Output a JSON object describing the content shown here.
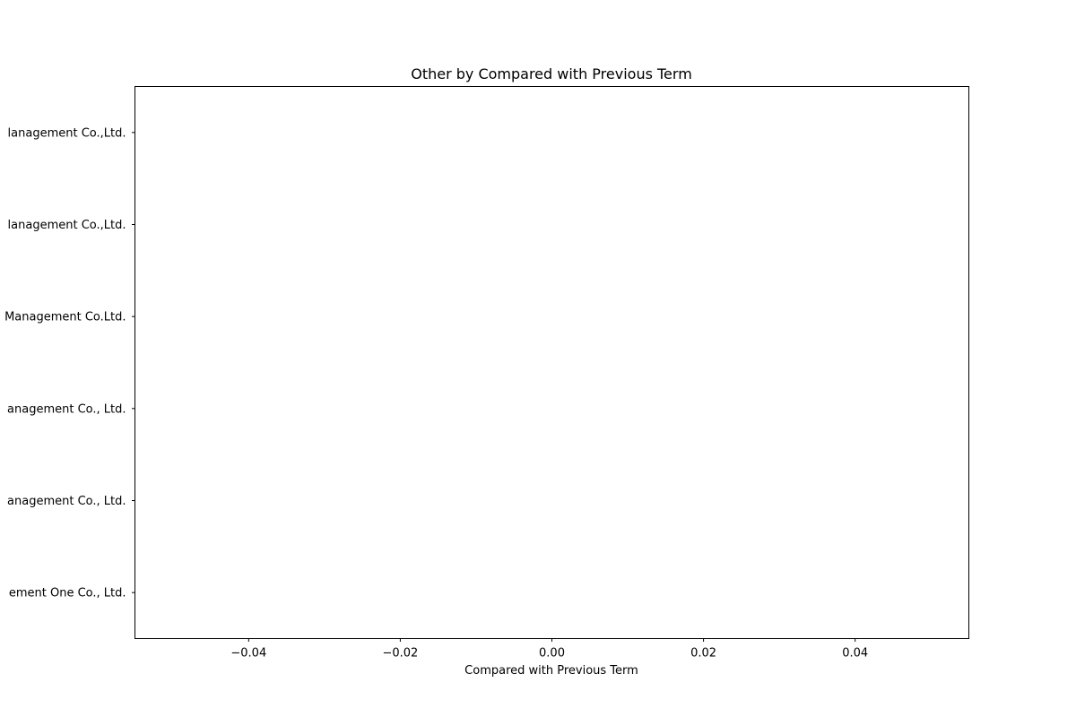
{
  "chart_data": {
    "type": "bar",
    "orientation": "horizontal",
    "title": "Other by Compared with Previous Term",
    "xlabel": "Compared with Previous Term",
    "ylabel": "",
    "xlim": [
      -0.055,
      0.055
    ],
    "xticks": [
      -0.04,
      -0.02,
      0.0,
      0.02,
      0.04
    ],
    "xtick_labels": [
      "−0.04",
      "−0.02",
      "0.00",
      "0.02",
      "0.04"
    ],
    "categories": [
      "ement One Co., Ltd.",
      "anagement Co., Ltd.",
      "anagement Co., Ltd.",
      "Management Co.Ltd.",
      "lanagement Co.,Ltd.",
      "lanagement Co.,Ltd."
    ],
    "values": [
      0,
      0,
      0,
      0,
      0,
      0
    ],
    "grid": false,
    "legend": "none"
  }
}
